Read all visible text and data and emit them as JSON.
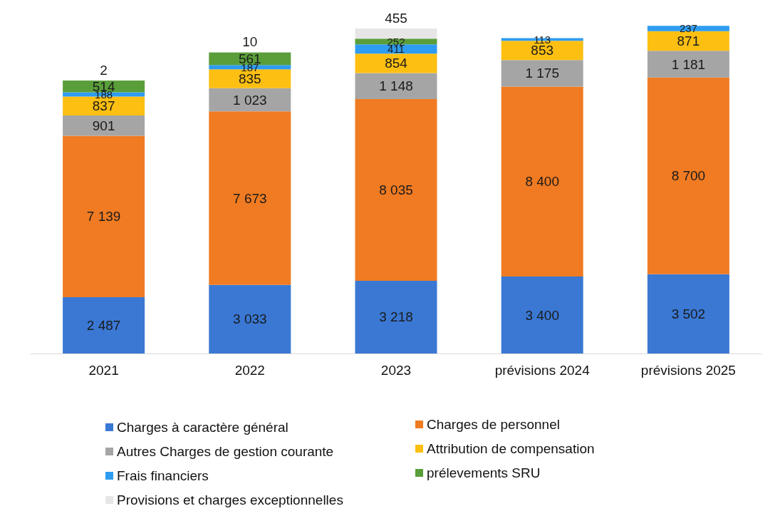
{
  "chart_data": {
    "type": "bar",
    "stacked": true,
    "legend": "bottom",
    "categories": [
      "2021",
      "2022",
      "2023",
      "prévisions 2024",
      "prévisions 2025"
    ],
    "series": [
      {
        "name": "Charges à caractère général",
        "color": "#3a78d4",
        "values": [
          2487,
          3033,
          3218,
          3400,
          3502
        ],
        "value_labels": [
          "2 487",
          "3 033",
          "3 218",
          "3 400",
          "3 502"
        ]
      },
      {
        "name": "Charges de personnel",
        "color": "#f07b22",
        "values": [
          7139,
          7673,
          8035,
          8400,
          8700
        ],
        "value_labels": [
          "7 139",
          "7 673",
          "8 035",
          "8 400",
          "8 700"
        ]
      },
      {
        "name": "Autres Charges de gestion courante",
        "color": "#a5a5a5",
        "values": [
          901,
          1023,
          1148,
          1175,
          1181
        ],
        "value_labels": [
          "901",
          "1 023",
          "1 148",
          "1 175",
          "1 181"
        ]
      },
      {
        "name": "Attribution de compensation",
        "color": "#fdbf12",
        "values": [
          837,
          835,
          854,
          853,
          871
        ],
        "value_labels": [
          "837",
          "835",
          "854",
          "853",
          "871"
        ]
      },
      {
        "name": "Frais financiers",
        "color": "#2e9cf0",
        "values": [
          188,
          187,
          411,
          113,
          237
        ],
        "value_labels": [
          "188",
          "187",
          "411",
          "113",
          "237"
        ]
      },
      {
        "name": "prélevements SRU",
        "color": "#5a9e3a",
        "values": [
          514,
          561,
          252,
          null,
          null
        ],
        "value_labels": [
          "514",
          "561",
          "252",
          null,
          null
        ]
      },
      {
        "name": "Provisions et charges exceptionnelles",
        "color": "#e6e6e6",
        "values": [
          2,
          10,
          455,
          null,
          null
        ],
        "value_labels": [
          "2",
          "10",
          "455",
          null,
          null
        ]
      }
    ]
  }
}
